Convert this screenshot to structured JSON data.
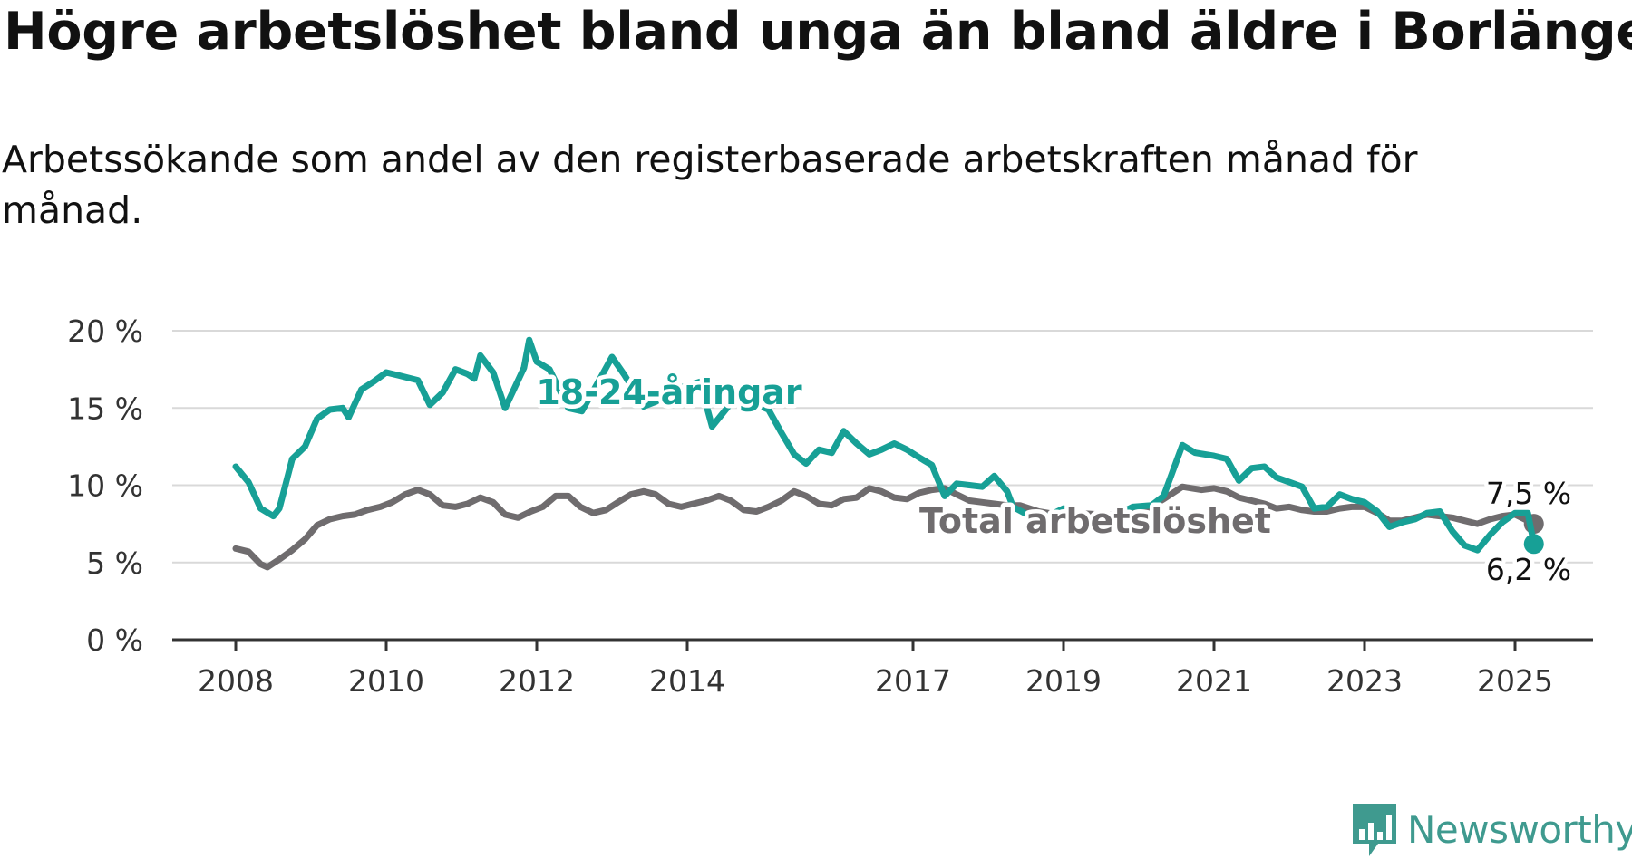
{
  "title": "Högre arbetslöshet bland unga än bland äldre i Borlänge",
  "subtitle": "Arbetssökande som andel av den registerbaserade arbetskraften månad för månad.",
  "brand": {
    "name": "Newsworthy",
    "color": "#3f9a8f",
    "icon": "bar-chart-speech-bubble-icon"
  },
  "chart_data": {
    "type": "line",
    "title": "Högre arbetslöshet bland unga än bland äldre i Borlänge",
    "xlabel": "",
    "ylabel": "",
    "x_ticks": [
      "2008",
      "2010",
      "2012",
      "2014",
      "2017",
      "2019",
      "2021",
      "2023",
      "2025"
    ],
    "x_tick_years": [
      2008,
      2010,
      2012,
      2014,
      2017,
      2019,
      2021,
      2023,
      2025
    ],
    "y_ticks": [
      "0 %",
      "5 %",
      "10 %",
      "15 %",
      "20 %"
    ],
    "y_tick_values": [
      0,
      5,
      10,
      15,
      20
    ],
    "ylim": [
      0,
      20
    ],
    "xlim": [
      2007.2,
      2026.2
    ],
    "grid": true,
    "legend": "none",
    "series": [
      {
        "name": "18-24-åringar",
        "color": "#17a096",
        "end_label": "6,2 %",
        "points": [
          [
            2008.0,
            11.2
          ],
          [
            2008.17,
            10.2
          ],
          [
            2008.33,
            8.5
          ],
          [
            2008.5,
            8.0
          ],
          [
            2008.58,
            8.5
          ],
          [
            2008.75,
            11.7
          ],
          [
            2008.92,
            12.5
          ],
          [
            2009.08,
            14.3
          ],
          [
            2009.25,
            14.9
          ],
          [
            2009.42,
            15.0
          ],
          [
            2009.5,
            14.4
          ],
          [
            2009.67,
            16.2
          ],
          [
            2009.83,
            16.7
          ],
          [
            2010.0,
            17.3
          ],
          [
            2010.17,
            17.1
          ],
          [
            2010.42,
            16.8
          ],
          [
            2010.58,
            15.2
          ],
          [
            2010.75,
            16.0
          ],
          [
            2010.92,
            17.5
          ],
          [
            2011.08,
            17.2
          ],
          [
            2011.17,
            16.9
          ],
          [
            2011.25,
            18.4
          ],
          [
            2011.42,
            17.3
          ],
          [
            2011.58,
            15.0
          ],
          [
            2011.83,
            17.6
          ],
          [
            2012.0,
            18.0
          ],
          [
            2011.9,
            19.4
          ],
          [
            2012.17,
            17.5
          ],
          [
            2012.42,
            15.0
          ],
          [
            2012.6,
            14.8
          ],
          [
            2012.83,
            16.8
          ],
          [
            2013.0,
            18.3
          ],
          [
            2013.17,
            17.1
          ],
          [
            2013.42,
            15.1
          ],
          [
            2013.58,
            15.4
          ],
          [
            2013.83,
            16.2
          ],
          [
            2014.17,
            16.7
          ],
          [
            2014.33,
            13.8
          ],
          [
            2014.58,
            15.3
          ],
          [
            2014.83,
            15.4
          ],
          [
            2015.08,
            14.9
          ],
          [
            2015.25,
            13.4
          ],
          [
            2015.42,
            12.0
          ],
          [
            2015.58,
            11.4
          ],
          [
            2015.75,
            12.3
          ],
          [
            2015.92,
            12.1
          ],
          [
            2016.08,
            13.5
          ],
          [
            2016.25,
            12.7
          ],
          [
            2016.42,
            12.0
          ],
          [
            2016.58,
            12.3
          ],
          [
            2016.75,
            12.7
          ],
          [
            2016.92,
            12.3
          ],
          [
            2017.08,
            11.8
          ],
          [
            2017.25,
            11.3
          ],
          [
            2017.42,
            9.3
          ],
          [
            2017.58,
            10.1
          ],
          [
            2017.75,
            10.0
          ],
          [
            2017.92,
            9.9
          ],
          [
            2018.08,
            10.6
          ],
          [
            2018.25,
            9.6
          ],
          [
            2018.33,
            8.6
          ],
          [
            2018.67,
            7.7
          ],
          [
            2019.0,
            8.5
          ],
          [
            2019.33,
            7.8
          ],
          [
            2019.67,
            8.0
          ],
          [
            2019.92,
            8.6
          ],
          [
            2020.17,
            8.7
          ],
          [
            2020.33,
            9.3
          ],
          [
            2020.58,
            12.6
          ],
          [
            2020.75,
            12.1
          ],
          [
            2021.0,
            11.9
          ],
          [
            2021.17,
            11.7
          ],
          [
            2021.33,
            10.3
          ],
          [
            2021.5,
            11.1
          ],
          [
            2021.67,
            11.2
          ],
          [
            2021.83,
            10.5
          ],
          [
            2022.0,
            10.2
          ],
          [
            2022.17,
            9.9
          ],
          [
            2022.33,
            8.5
          ],
          [
            2022.5,
            8.6
          ],
          [
            2022.67,
            9.4
          ],
          [
            2022.83,
            9.1
          ],
          [
            2023.0,
            8.9
          ],
          [
            2023.17,
            8.3
          ],
          [
            2023.33,
            7.3
          ],
          [
            2023.5,
            7.6
          ],
          [
            2023.67,
            7.8
          ],
          [
            2023.83,
            8.2
          ],
          [
            2024.0,
            8.3
          ],
          [
            2024.17,
            7.0
          ],
          [
            2024.33,
            6.1
          ],
          [
            2024.5,
            5.8
          ],
          [
            2024.67,
            6.8
          ],
          [
            2024.83,
            7.6
          ],
          [
            2025.0,
            8.2
          ],
          [
            2025.17,
            8.2
          ],
          [
            2025.25,
            6.2
          ]
        ]
      },
      {
        "name": "Total arbetslöshet",
        "color": "#6f6c6e",
        "end_label": "7,5 %",
        "points": [
          [
            2008.0,
            5.9
          ],
          [
            2008.17,
            5.7
          ],
          [
            2008.33,
            4.9
          ],
          [
            2008.42,
            4.7
          ],
          [
            2008.58,
            5.2
          ],
          [
            2008.75,
            5.8
          ],
          [
            2008.92,
            6.5
          ],
          [
            2009.08,
            7.4
          ],
          [
            2009.25,
            7.8
          ],
          [
            2009.42,
            8.0
          ],
          [
            2009.58,
            8.1
          ],
          [
            2009.75,
            8.4
          ],
          [
            2009.92,
            8.6
          ],
          [
            2010.08,
            8.9
          ],
          [
            2010.25,
            9.4
          ],
          [
            2010.42,
            9.7
          ],
          [
            2010.58,
            9.4
          ],
          [
            2010.75,
            8.7
          ],
          [
            2010.92,
            8.6
          ],
          [
            2011.08,
            8.8
          ],
          [
            2011.25,
            9.2
          ],
          [
            2011.42,
            8.9
          ],
          [
            2011.58,
            8.1
          ],
          [
            2011.75,
            7.9
          ],
          [
            2011.92,
            8.3
          ],
          [
            2012.08,
            8.6
          ],
          [
            2012.25,
            9.3
          ],
          [
            2012.42,
            9.3
          ],
          [
            2012.58,
            8.6
          ],
          [
            2012.75,
            8.2
          ],
          [
            2012.92,
            8.4
          ],
          [
            2013.08,
            8.9
          ],
          [
            2013.25,
            9.4
          ],
          [
            2013.42,
            9.6
          ],
          [
            2013.58,
            9.4
          ],
          [
            2013.75,
            8.8
          ],
          [
            2013.92,
            8.6
          ],
          [
            2014.08,
            8.8
          ],
          [
            2014.25,
            9.0
          ],
          [
            2014.42,
            9.3
          ],
          [
            2014.58,
            9.0
          ],
          [
            2014.75,
            8.4
          ],
          [
            2014.92,
            8.3
          ],
          [
            2015.08,
            8.6
          ],
          [
            2015.25,
            9.0
          ],
          [
            2015.42,
            9.6
          ],
          [
            2015.58,
            9.3
          ],
          [
            2015.75,
            8.8
          ],
          [
            2015.92,
            8.7
          ],
          [
            2016.08,
            9.1
          ],
          [
            2016.25,
            9.2
          ],
          [
            2016.42,
            9.8
          ],
          [
            2016.58,
            9.6
          ],
          [
            2016.75,
            9.2
          ],
          [
            2016.92,
            9.1
          ],
          [
            2017.08,
            9.5
          ],
          [
            2017.25,
            9.7
          ],
          [
            2017.42,
            9.8
          ],
          [
            2017.58,
            9.4
          ],
          [
            2017.75,
            9.0
          ],
          [
            2017.92,
            8.9
          ],
          [
            2018.08,
            8.8
          ],
          [
            2018.25,
            8.7
          ],
          [
            2018.42,
            8.7
          ],
          [
            2018.67,
            8.3
          ],
          [
            2018.92,
            8.1
          ],
          [
            2019.17,
            8.2
          ],
          [
            2019.5,
            8.1
          ],
          [
            2019.83,
            8.1
          ],
          [
            2020.08,
            8.4
          ],
          [
            2020.33,
            9.1
          ],
          [
            2020.58,
            9.9
          ],
          [
            2020.83,
            9.7
          ],
          [
            2021.0,
            9.8
          ],
          [
            2021.17,
            9.6
          ],
          [
            2021.33,
            9.2
          ],
          [
            2021.5,
            9.0
          ],
          [
            2021.67,
            8.8
          ],
          [
            2021.83,
            8.5
          ],
          [
            2022.0,
            8.6
          ],
          [
            2022.17,
            8.4
          ],
          [
            2022.33,
            8.3
          ],
          [
            2022.5,
            8.3
          ],
          [
            2022.67,
            8.5
          ],
          [
            2022.83,
            8.6
          ],
          [
            2023.0,
            8.6
          ],
          [
            2023.17,
            8.2
          ],
          [
            2023.33,
            7.7
          ],
          [
            2023.5,
            7.7
          ],
          [
            2023.67,
            7.9
          ],
          [
            2023.83,
            8.1
          ],
          [
            2024.0,
            8.0
          ],
          [
            2024.17,
            7.9
          ],
          [
            2024.33,
            7.7
          ],
          [
            2024.5,
            7.5
          ],
          [
            2024.67,
            7.8
          ],
          [
            2024.83,
            8.0
          ],
          [
            2025.0,
            8.1
          ],
          [
            2025.25,
            7.5
          ]
        ]
      }
    ]
  }
}
